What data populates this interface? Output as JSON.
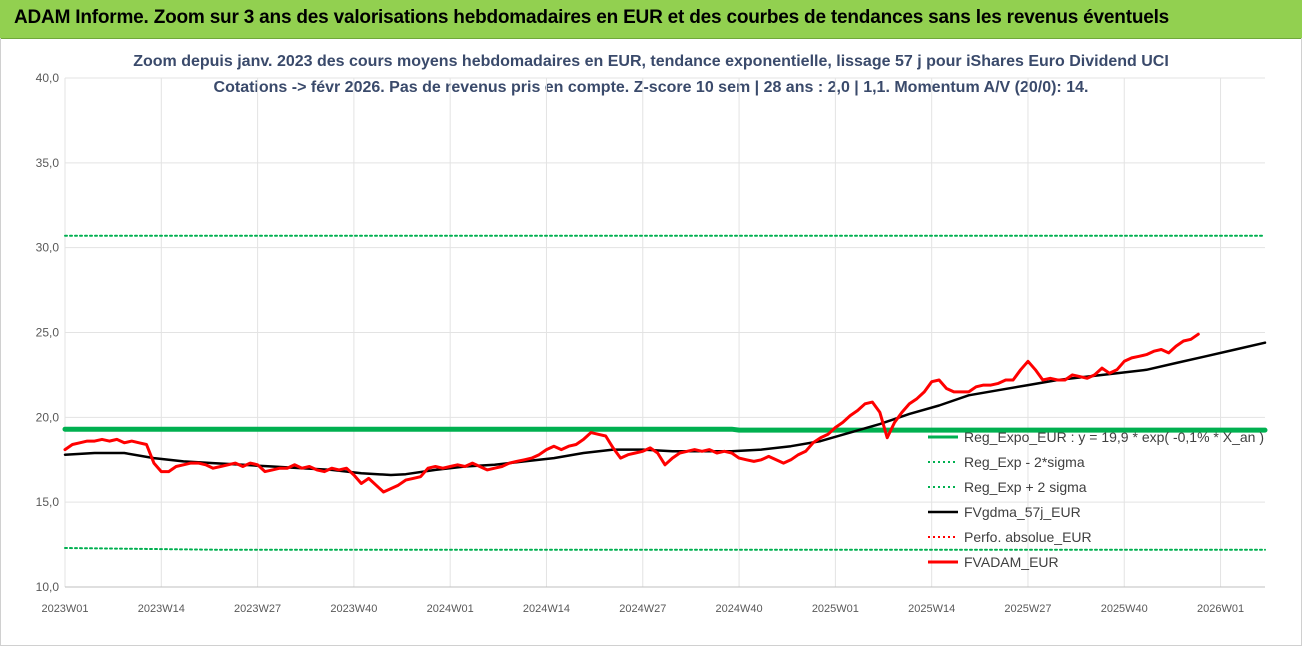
{
  "banner": {
    "text": "ADAM Informe. Zoom sur 3 ans des valorisations hebdomadaires en EUR et des courbes de tendances sans les revenus éventuels"
  },
  "chart_data": {
    "type": "line",
    "title": "Zoom depuis janv. 2023 des cours moyens hebdomadaires en EUR, tendance exponentielle, lissage 57 j pour iShares Euro Dividend UCI",
    "subtitle": "Cotations -> févr 2026. Pas de revenus pris en compte. Z-score 10 sem | 28 ans : 2,0 | 1,1. Momentum A/V (20/0): 14.",
    "ylim": [
      10,
      40
    ],
    "y_ticks": [
      "10,0",
      "15,0",
      "20,0",
      "25,0",
      "30,0",
      "35,0",
      "40,0"
    ],
    "x_ticks": [
      "2023W01",
      "2023W14",
      "2023W27",
      "2023W40",
      "2024W01",
      "2024W14",
      "2024W27",
      "2024W40",
      "2025W01",
      "2025W14",
      "2025W27",
      "2025W40",
      "2026W01"
    ],
    "grid": true,
    "legend_position": "right",
    "series": [
      {
        "name": "Reg_Expo_EUR : y = 19,9 * exp( -0,1% * X_an )",
        "color": "#00b050",
        "style": "solid-thick",
        "points": [
          [
            0,
            19.3
          ],
          [
            90,
            19.3
          ],
          [
            91,
            19.25
          ],
          [
            162,
            19.25
          ]
        ]
      },
      {
        "name": "Reg_Exp - 2*sigma",
        "color": "#00b050",
        "style": "dotted",
        "points": [
          [
            0,
            12.3
          ],
          [
            20,
            12.2
          ],
          [
            162,
            12.2
          ]
        ]
      },
      {
        "name": "Reg_Exp + 2 sigma",
        "color": "#00b050",
        "style": "dotted",
        "points": [
          [
            0,
            30.7
          ],
          [
            162,
            30.7
          ]
        ]
      },
      {
        "name": "FVgdma_57j_EUR",
        "color": "#000000",
        "style": "solid",
        "points": [
          [
            0,
            17.8
          ],
          [
            4,
            17.9
          ],
          [
            8,
            17.9
          ],
          [
            12,
            17.6
          ],
          [
            16,
            17.4
          ],
          [
            20,
            17.3
          ],
          [
            24,
            17.2
          ],
          [
            28,
            17.1
          ],
          [
            32,
            17.0
          ],
          [
            36,
            16.9
          ],
          [
            40,
            16.7
          ],
          [
            44,
            16.6
          ],
          [
            46,
            16.65
          ],
          [
            50,
            16.9
          ],
          [
            54,
            17.1
          ],
          [
            58,
            17.2
          ],
          [
            62,
            17.4
          ],
          [
            66,
            17.6
          ],
          [
            70,
            17.9
          ],
          [
            74,
            18.1
          ],
          [
            78,
            18.1
          ],
          [
            82,
            18.0
          ],
          [
            86,
            18.0
          ],
          [
            90,
            18.0
          ],
          [
            94,
            18.1
          ],
          [
            98,
            18.3
          ],
          [
            102,
            18.6
          ],
          [
            106,
            19.1
          ],
          [
            110,
            19.6
          ],
          [
            114,
            20.2
          ],
          [
            118,
            20.7
          ],
          [
            122,
            21.3
          ],
          [
            126,
            21.6
          ],
          [
            130,
            21.9
          ],
          [
            134,
            22.2
          ],
          [
            138,
            22.4
          ],
          [
            142,
            22.6
          ],
          [
            146,
            22.8
          ],
          [
            150,
            23.2
          ],
          [
            154,
            23.6
          ],
          [
            158,
            24.0
          ],
          [
            162,
            24.4
          ]
        ]
      },
      {
        "name": "Perfo. absolue_EUR",
        "color": "#ff0000",
        "style": "dotted",
        "points": []
      },
      {
        "name": "FVADAM_EUR",
        "color": "#ff0000",
        "style": "solid-thick",
        "points": [
          [
            0,
            18.1
          ],
          [
            1,
            18.4
          ],
          [
            2,
            18.5
          ],
          [
            3,
            18.6
          ],
          [
            4,
            18.6
          ],
          [
            5,
            18.7
          ],
          [
            6,
            18.6
          ],
          [
            7,
            18.7
          ],
          [
            8,
            18.5
          ],
          [
            9,
            18.6
          ],
          [
            10,
            18.5
          ],
          [
            11,
            18.4
          ],
          [
            12,
            17.3
          ],
          [
            13,
            16.8
          ],
          [
            14,
            16.8
          ],
          [
            15,
            17.1
          ],
          [
            16,
            17.2
          ],
          [
            17,
            17.3
          ],
          [
            18,
            17.3
          ],
          [
            19,
            17.2
          ],
          [
            20,
            17.0
          ],
          [
            21,
            17.1
          ],
          [
            22,
            17.2
          ],
          [
            23,
            17.3
          ],
          [
            24,
            17.1
          ],
          [
            25,
            17.3
          ],
          [
            26,
            17.2
          ],
          [
            27,
            16.8
          ],
          [
            28,
            16.9
          ],
          [
            29,
            17.0
          ],
          [
            30,
            17.0
          ],
          [
            31,
            17.2
          ],
          [
            32,
            17.0
          ],
          [
            33,
            17.1
          ],
          [
            34,
            16.9
          ],
          [
            35,
            16.8
          ],
          [
            36,
            17.0
          ],
          [
            37,
            16.9
          ],
          [
            38,
            17.0
          ],
          [
            39,
            16.6
          ],
          [
            40,
            16.1
          ],
          [
            41,
            16.4
          ],
          [
            42,
            16.0
          ],
          [
            43,
            15.6
          ],
          [
            44,
            15.8
          ],
          [
            45,
            16.0
          ],
          [
            46,
            16.3
          ],
          [
            47,
            16.4
          ],
          [
            48,
            16.5
          ],
          [
            49,
            17.0
          ],
          [
            50,
            17.1
          ],
          [
            51,
            17.0
          ],
          [
            52,
            17.1
          ],
          [
            53,
            17.2
          ],
          [
            54,
            17.1
          ],
          [
            55,
            17.3
          ],
          [
            56,
            17.1
          ],
          [
            57,
            16.9
          ],
          [
            58,
            17.0
          ],
          [
            59,
            17.1
          ],
          [
            60,
            17.3
          ],
          [
            61,
            17.4
          ],
          [
            62,
            17.5
          ],
          [
            63,
            17.6
          ],
          [
            64,
            17.8
          ],
          [
            65,
            18.1
          ],
          [
            66,
            18.3
          ],
          [
            67,
            18.1
          ],
          [
            68,
            18.3
          ],
          [
            69,
            18.4
          ],
          [
            70,
            18.7
          ],
          [
            71,
            19.1
          ],
          [
            72,
            19.0
          ],
          [
            73,
            18.9
          ],
          [
            74,
            18.2
          ],
          [
            75,
            17.6
          ],
          [
            76,
            17.8
          ],
          [
            77,
            17.9
          ],
          [
            78,
            18.0
          ],
          [
            79,
            18.2
          ],
          [
            80,
            17.9
          ],
          [
            81,
            17.2
          ],
          [
            82,
            17.6
          ],
          [
            83,
            17.9
          ],
          [
            84,
            18.0
          ],
          [
            85,
            18.1
          ],
          [
            86,
            18.0
          ],
          [
            87,
            18.1
          ],
          [
            88,
            17.9
          ],
          [
            89,
            18.0
          ],
          [
            90,
            17.9
          ],
          [
            91,
            17.6
          ],
          [
            92,
            17.5
          ],
          [
            93,
            17.4
          ],
          [
            94,
            17.5
          ],
          [
            95,
            17.7
          ],
          [
            96,
            17.5
          ],
          [
            97,
            17.3
          ],
          [
            98,
            17.5
          ],
          [
            99,
            17.8
          ],
          [
            100,
            18.0
          ],
          [
            101,
            18.5
          ],
          [
            102,
            18.8
          ],
          [
            103,
            19.0
          ],
          [
            104,
            19.4
          ],
          [
            105,
            19.7
          ],
          [
            106,
            20.1
          ],
          [
            107,
            20.4
          ],
          [
            108,
            20.8
          ],
          [
            109,
            20.9
          ],
          [
            110,
            20.3
          ],
          [
            111,
            18.8
          ],
          [
            112,
            19.7
          ],
          [
            113,
            20.3
          ],
          [
            114,
            20.8
          ],
          [
            115,
            21.1
          ],
          [
            116,
            21.5
          ],
          [
            117,
            22.1
          ],
          [
            118,
            22.2
          ],
          [
            119,
            21.7
          ],
          [
            120,
            21.5
          ],
          [
            121,
            21.5
          ],
          [
            122,
            21.5
          ],
          [
            123,
            21.8
          ],
          [
            124,
            21.9
          ],
          [
            125,
            21.9
          ],
          [
            126,
            22.0
          ],
          [
            127,
            22.2
          ],
          [
            128,
            22.2
          ],
          [
            129,
            22.8
          ],
          [
            130,
            23.3
          ],
          [
            131,
            22.8
          ],
          [
            132,
            22.2
          ],
          [
            133,
            22.3
          ],
          [
            134,
            22.2
          ],
          [
            135,
            22.2
          ],
          [
            136,
            22.5
          ],
          [
            137,
            22.4
          ],
          [
            138,
            22.3
          ],
          [
            139,
            22.5
          ],
          [
            140,
            22.9
          ],
          [
            141,
            22.6
          ],
          [
            142,
            22.8
          ],
          [
            143,
            23.3
          ],
          [
            144,
            23.5
          ],
          [
            145,
            23.6
          ],
          [
            146,
            23.7
          ],
          [
            147,
            23.9
          ],
          [
            148,
            24.0
          ],
          [
            149,
            23.8
          ],
          [
            150,
            24.2
          ],
          [
            151,
            24.5
          ],
          [
            152,
            24.6
          ],
          [
            153,
            24.9
          ]
        ]
      }
    ]
  }
}
